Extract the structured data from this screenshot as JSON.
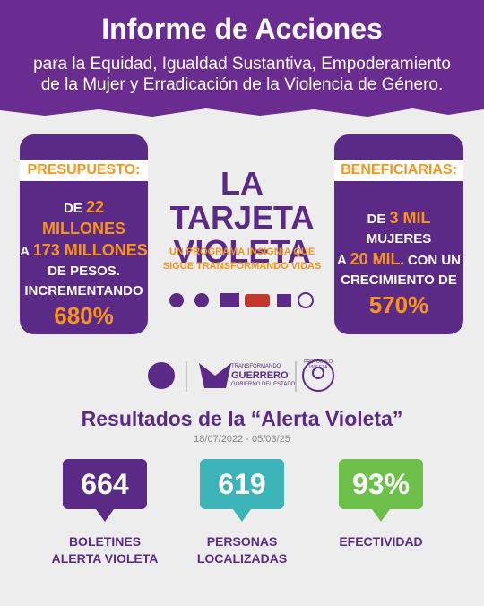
{
  "header": {
    "title": "Informe de Acciones",
    "subtitle": [
      "para la Equidad, Igualdad Sustantiva, Empoderamiento",
      "de la Mujer y Erradicación de la Violencia de Género."
    ]
  },
  "left_card": {
    "label": "PRESUPUESTO:",
    "lines": [
      [
        {
          "text": "DE ",
          "color": "#ffffff"
        },
        {
          "text": "22 MILLONES",
          "color": "#f7941d"
        }
      ],
      [
        {
          "text": "A ",
          "color": "#ffffff"
        },
        {
          "text": "173 MILLONES",
          "color": "#f7941d"
        }
      ],
      [
        {
          "text": "DE PESOS.",
          "color": "#ffffff"
        }
      ],
      [
        {
          "text": "INCREMENTANDO",
          "color": "#ffffff"
        }
      ],
      [
        {
          "text": "680%",
          "color": "#f7941d"
        }
      ]
    ]
  },
  "center": {
    "title": [
      "LA TARJETA",
      "VIOLETA"
    ],
    "subtitle": [
      "UN PROGRAMA INSIGNIA QUE",
      "SIGUE TRANSFORMANDO VIDAS"
    ]
  },
  "right_card": {
    "label": "BENEFICIARIAS:",
    "lines": [
      [
        {
          "text": "DE ",
          "color": "#ffffff"
        },
        {
          "text": "3 MIL",
          "color": "#f7941d"
        },
        {
          "text": " MUJERES",
          "color": "#ffffff"
        }
      ],
      [
        {
          "text": "A ",
          "color": "#ffffff"
        },
        {
          "text": "20 MIL",
          "color": "#f7941d"
        },
        {
          "text": ". CON UN",
          "color": "#ffffff"
        }
      ],
      [
        {
          "text": "CRECIMIENTO DE",
          "color": "#ffffff"
        }
      ],
      [
        {
          "text": "570%",
          "color": "#f7941d"
        }
      ]
    ]
  },
  "logos": {
    "transformando": "TRANSFORMANDO",
    "guerrero": "GUERRERO",
    "gobierno": "GOBIERNO DEL ESTADO",
    "protocolo": "PROTOCOLO VIOLETA"
  },
  "results": {
    "title": "Resultados de la “Alerta Violeta”",
    "date_range": "18/07/2022 - 05/03/25",
    "stats": [
      {
        "value": "664",
        "label": [
          "BOLETINES",
          "ALERTA VIOLETA"
        ],
        "color": "#5b2a86"
      },
      {
        "value": "619",
        "label": [
          "PERSONAS",
          "LOCALIZADAS"
        ],
        "color": "#3bb3b8"
      },
      {
        "value": "93%",
        "label": [
          "EFECTIVIDAD"
        ],
        "color": "#6cc04a"
      }
    ]
  }
}
